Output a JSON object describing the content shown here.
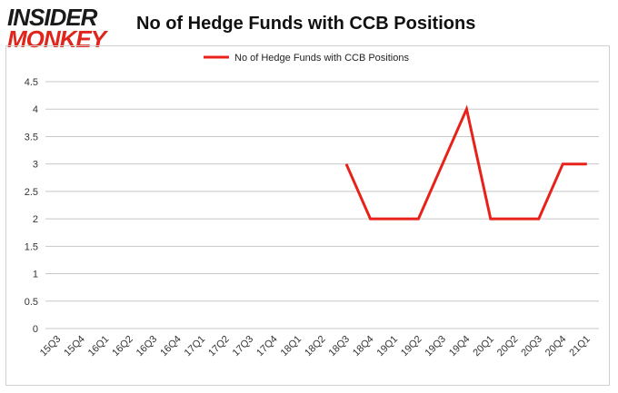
{
  "brand": {
    "line1": "INSIDER",
    "line2": "MONKEY"
  },
  "chart_data": {
    "type": "line",
    "title": "No of Hedge Funds with CCB Positions",
    "xlabel": "",
    "ylabel": "",
    "categories": [
      "15Q3",
      "15Q4",
      "16Q1",
      "16Q2",
      "16Q3",
      "16Q4",
      "17Q1",
      "17Q2",
      "17Q3",
      "17Q4",
      "18Q1",
      "18Q2",
      "18Q3",
      "18Q4",
      "19Q1",
      "19Q2",
      "19Q3",
      "19Q4",
      "20Q1",
      "20Q2",
      "20Q3",
      "20Q4",
      "21Q1"
    ],
    "series": [
      {
        "name": "No of Hedge Funds with CCB Positions",
        "color": "#e8211b",
        "values": [
          null,
          null,
          null,
          null,
          null,
          null,
          null,
          null,
          null,
          null,
          null,
          null,
          3,
          2,
          2,
          2,
          3,
          4,
          2,
          2,
          2,
          3,
          3
        ]
      }
    ],
    "ylim": [
      0,
      4.5
    ],
    "yticks": [
      "0",
      "0.5",
      "1",
      "1.5",
      "2",
      "2.5",
      "3",
      "3.5",
      "4",
      "4.5"
    ],
    "grid": true,
    "legend_position": "top-center"
  }
}
